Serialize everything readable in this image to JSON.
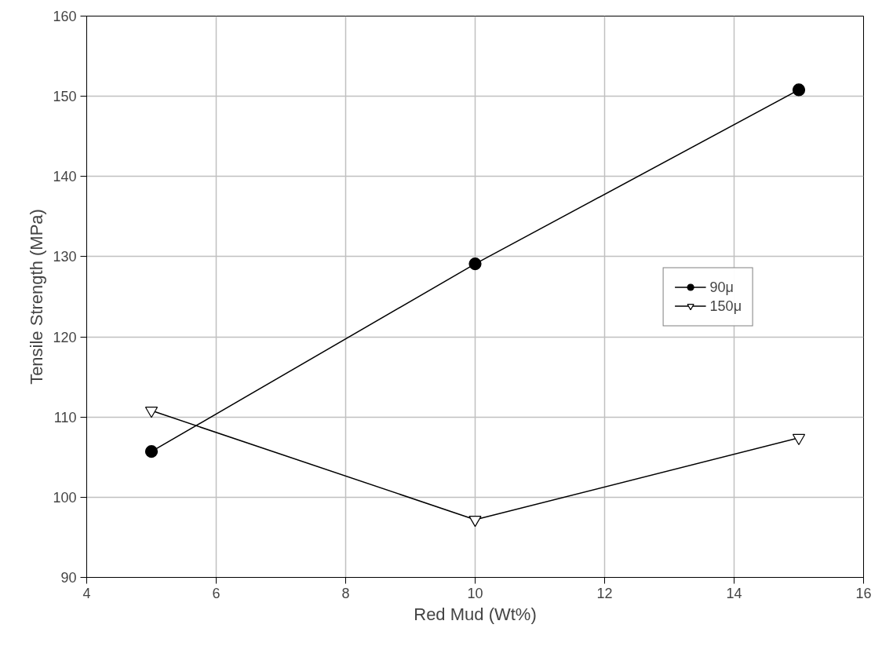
{
  "chart_data": {
    "type": "line",
    "xlabel": "Red Mud (Wt%)",
    "ylabel": "Tensile Strength (MPa)",
    "x": [
      5,
      10,
      15
    ],
    "series": [
      {
        "name": "90μ",
        "color": "#000000",
        "marker": "circle",
        "values": [
          105.7,
          129.1,
          150.8
        ]
      },
      {
        "name": "150μ",
        "color": "#000000",
        "marker": "triangle",
        "values": [
          110.8,
          97.2,
          107.4
        ]
      }
    ],
    "xlim": [
      4,
      16
    ],
    "xticks": [
      4,
      6,
      8,
      10,
      12,
      14,
      16
    ],
    "ylim": [
      90,
      160
    ],
    "yticks": [
      90,
      100,
      110,
      120,
      130,
      140,
      150,
      160
    ],
    "grid": true,
    "legend": "right",
    "line_style": "solid"
  }
}
